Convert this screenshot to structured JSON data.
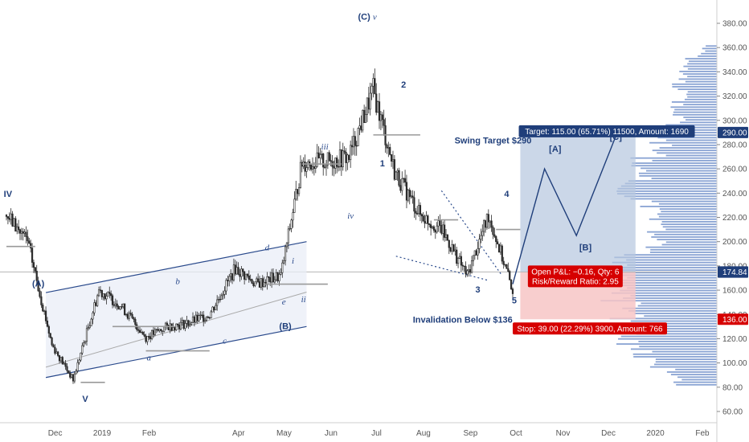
{
  "chart_data": {
    "type": "candlestick",
    "title": "",
    "xlabel": "",
    "ylabel": "",
    "ylim": [
      50,
      395
    ],
    "y_ticks": [
      60,
      80,
      100,
      120,
      140,
      160,
      180,
      200,
      220,
      240,
      260,
      280,
      300,
      320,
      340,
      360,
      380
    ],
    "y_tick_labels": [
      "60.00",
      "80.00",
      "100.00",
      "120.00",
      "140.00",
      "160.00",
      "180.00",
      "200.00",
      "220.00",
      "240.00",
      "260.00",
      "280.00",
      "300.00",
      "320.00",
      "340.00",
      "360.00",
      "380.00"
    ],
    "x_labels": [
      "Dec",
      "2019",
      "Feb",
      "Apr",
      "May",
      "Jun",
      "Jul",
      "Aug",
      "Sep",
      "Oct",
      "Nov",
      "Dec",
      "2020",
      "Feb"
    ],
    "grid": false,
    "price_badges": [
      {
        "label": "290.00",
        "value": 290,
        "color": "#1f3e7a"
      },
      {
        "label": "175.00",
        "value": 175,
        "color": "#1f3e7a"
      },
      {
        "label": "174.84",
        "value": 174.84,
        "color": "#1f3e7a"
      },
      {
        "label": "136.00",
        "value": 136,
        "color": "#d60000"
      }
    ],
    "price_series": {
      "name": "",
      "dates": [
        "2018-11-01",
        "2018-11-15",
        "2018-12-01",
        "2018-12-15",
        "2019-01-01",
        "2019-01-15",
        "2019-02-01",
        "2019-02-15",
        "2019-03-01",
        "2019-03-15",
        "2019-04-01",
        "2019-04-15",
        "2019-05-01",
        "2019-05-15",
        "2019-06-01",
        "2019-06-15",
        "2019-07-01",
        "2019-07-15",
        "2019-08-01",
        "2019-08-15",
        "2019-09-01",
        "2019-09-15",
        "2019-10-01"
      ],
      "close": [
        222,
        200,
        115,
        86,
        160,
        148,
        121,
        130,
        133,
        140,
        178,
        165,
        172,
        265,
        266,
        270,
        325,
        258,
        222,
        210,
        172,
        222,
        160
      ]
    },
    "wave_labels": [
      {
        "text": "IV",
        "style": "bold"
      },
      {
        "text": "V",
        "style": "bold"
      },
      {
        "text": "(A)",
        "style": "bold"
      },
      {
        "text": "a",
        "style": "italic"
      },
      {
        "text": "b",
        "style": "italic"
      },
      {
        "text": "c",
        "style": "italic"
      },
      {
        "text": "d",
        "style": "italic"
      },
      {
        "text": "e",
        "style": "italic"
      },
      {
        "text": "(B)",
        "style": "bold"
      },
      {
        "text": "i",
        "style": "italic"
      },
      {
        "text": "ii",
        "style": "italic"
      },
      {
        "text": "iii",
        "style": "italic"
      },
      {
        "text": "iv",
        "style": "italic"
      },
      {
        "text": "(C)",
        "style": "bold"
      },
      {
        "text": "v",
        "style": "italic"
      },
      {
        "text": "1",
        "style": "bold"
      },
      {
        "text": "2",
        "style": "bold"
      },
      {
        "text": "3",
        "style": "bold"
      },
      {
        "text": "4",
        "style": "bold"
      },
      {
        "text": "5",
        "style": "bold"
      },
      {
        "text": "[A]",
        "style": "bold"
      },
      {
        "text": "[B]",
        "style": "bold"
      },
      {
        "text": "[C]",
        "style": "bold"
      }
    ],
    "annotations": {
      "swing_target": "Swing Target $290",
      "invalidation": "Invalidation Below $136"
    },
    "position": {
      "entry": 175,
      "target": 290,
      "stop": 136,
      "target_label": "Target: 115.00 (65.71%) 11500, Amount: 1690",
      "stop_label": "Stop: 39.00 (22.29%) 3900, Amount: 766",
      "pnl_label": "Open P&L: −0.16, Qty: 6",
      "rr_label": "Risk/Reward Ratio: 2.95",
      "target_color": "#1f3e7a",
      "stop_color": "#d60000",
      "target_fill": "#b7c7df",
      "stop_fill": "#f7c6c6"
    },
    "projection_path": [
      {
        "date": "2019-10-01",
        "value": 165
      },
      {
        "date": "2019-10-22",
        "value": 260
      },
      {
        "date": "2019-11-12",
        "value": 205
      },
      {
        "date": "2019-12-08",
        "value": 287
      }
    ],
    "channel": {
      "upper": [
        {
          "date": "2018-11-27",
          "value": 158
        },
        {
          "date": "2019-05-18",
          "value": 200
        }
      ],
      "lower": [
        {
          "date": "2018-11-27",
          "value": 88
        },
        {
          "date": "2019-05-18",
          "value": 130
        }
      ]
    },
    "colors": {
      "candle": "#2a2a2a",
      "accent": "#1f3e7a",
      "volume_profile": "#5b7fc2",
      "axis_text": "#555555"
    }
  }
}
